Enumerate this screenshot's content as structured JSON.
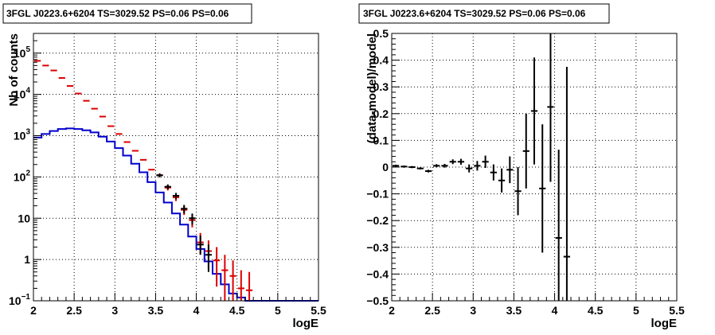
{
  "chart_data": [
    {
      "type": "line",
      "title": "3FGL J0223.6+6204 TS=3029.52 PS=0.06 PS=0.06",
      "xlabel": "logE",
      "ylabel": "Nb of counts",
      "xlim": [
        2,
        5.5
      ],
      "ylim": [
        0.1,
        300000
      ],
      "yscale": "log",
      "grid": true,
      "xticks": [
        "2",
        "2.5",
        "3",
        "3.5",
        "4",
        "4.5",
        "5",
        "5.5"
      ],
      "yticks": [
        {
          "v": 0.1,
          "m": "10",
          "e": "−1"
        },
        {
          "v": 1,
          "m": "1",
          "e": ""
        },
        {
          "v": 10,
          "m": "10",
          "e": ""
        },
        {
          "v": 100,
          "m": "10",
          "e": "2"
        },
        {
          "v": 1000,
          "m": "10",
          "e": "3"
        },
        {
          "v": 10000,
          "m": "10",
          "e": "4"
        },
        {
          "v": 100000,
          "m": "10",
          "e": "5"
        }
      ],
      "bin_edges": [
        2.0,
        2.1,
        2.2,
        2.3,
        2.4,
        2.5,
        2.6,
        2.7,
        2.8,
        2.9,
        3.0,
        3.1,
        3.2,
        3.3,
        3.4,
        3.5,
        3.6,
        3.7,
        3.8,
        3.9,
        4.0,
        4.1,
        4.2,
        4.3,
        4.4,
        4.5,
        4.6,
        4.7,
        4.8,
        4.9,
        5.0,
        5.1,
        5.2,
        5.3,
        5.4,
        5.5
      ],
      "series": [
        {
          "kind": "histogram",
          "color": "#0000cc",
          "values": [
            900,
            1100,
            1300,
            1450,
            1500,
            1450,
            1350,
            1200,
            950,
            720,
            500,
            330,
            210,
            130,
            75,
            42,
            24,
            13,
            7,
            3.6,
            1.8,
            0.9,
            0.45,
            0.25,
            0.15,
            0.12,
            0.1,
            0.1,
            0.1,
            0.1,
            0.1,
            0.1,
            0.1,
            0.1,
            0.1
          ]
        },
        {
          "kind": "points",
          "color": "#dd0000",
          "x": [
            2.05,
            2.15,
            2.25,
            2.35,
            2.45,
            2.55,
            2.65,
            2.75,
            2.85,
            2.95,
            3.05,
            3.15,
            3.25,
            3.35,
            3.45,
            3.55,
            3.65,
            3.75,
            3.85,
            3.95,
            4.05,
            4.15,
            4.25,
            4.35,
            4.45,
            4.55,
            4.65
          ],
          "y": [
            65000,
            50000,
            38000,
            25000,
            16000,
            10500,
            7000,
            4500,
            2900,
            1700,
            1100,
            700,
            430,
            260,
            150,
            110,
            55,
            32,
            16,
            9,
            2.6,
            1.6,
            0.95,
            0.55,
            0.4,
            0.2,
            0.18
          ],
          "err_low": [
            0,
            0,
            0,
            0,
            0,
            0,
            0,
            0,
            0,
            0,
            0,
            0,
            0,
            0,
            0,
            12,
            8,
            6,
            4,
            3,
            1.2,
            1.0,
            0.73,
            0.45,
            0.3,
            0.1,
            0.08
          ],
          "err_high": [
            0,
            0,
            0,
            0,
            0,
            0,
            0,
            0,
            0,
            0,
            0,
            0,
            0,
            0,
            0,
            12,
            8,
            6,
            4,
            3,
            1.8,
            1.3,
            1.05,
            0.75,
            0.55,
            0.35,
            0.32
          ]
        },
        {
          "kind": "points",
          "color": "#000000",
          "x": [
            3.55,
            3.65,
            3.75,
            3.85,
            3.95,
            4.05,
            4.15
          ],
          "y": [
            110,
            58,
            35,
            17,
            10,
            2.3,
            1.3
          ],
          "err_low": [
            12,
            8,
            6,
            4,
            3,
            1.0,
            0.8
          ],
          "err_high": [
            12,
            8,
            6,
            4,
            3,
            1.5,
            1.0
          ]
        }
      ]
    },
    {
      "type": "scatter",
      "title": "3FGL J0223.6+6204 TS=3029.52 PS=0.06 PS=0.06",
      "xlabel": "logE",
      "ylabel": "(data-model)/model",
      "xlim": [
        2,
        5.5
      ],
      "ylim": [
        -0.5,
        0.5
      ],
      "grid": true,
      "xticks": [
        "2",
        "2.5",
        "3",
        "3.5",
        "4",
        "4.5",
        "5",
        "5.5"
      ],
      "yticks": [
        "−0.5",
        "−0.4",
        "−0.3",
        "−0.2",
        "−0.1",
        "0",
        "0.1",
        "0.2",
        "0.3",
        "0.4",
        "0.5"
      ],
      "series": [
        {
          "color": "#000000",
          "x": [
            2.05,
            2.15,
            2.25,
            2.35,
            2.45,
            2.55,
            2.65,
            2.75,
            2.85,
            2.95,
            3.05,
            3.15,
            3.25,
            3.35,
            3.45,
            3.55,
            3.65,
            3.75,
            3.85,
            3.95,
            4.05,
            4.15
          ],
          "y": [
            0.005,
            0.002,
            0.0,
            -0.005,
            -0.015,
            0.005,
            0.005,
            0.02,
            0.02,
            -0.005,
            0.005,
            0.02,
            -0.02,
            -0.05,
            -0.01,
            -0.09,
            0.06,
            0.21,
            -0.08,
            0.225,
            -0.265,
            -0.335
          ],
          "err": [
            0.004,
            0.004,
            0.004,
            0.004,
            0.005,
            0.006,
            0.007,
            0.009,
            0.011,
            0.015,
            0.018,
            0.023,
            0.03,
            0.045,
            0.05,
            0.09,
            0.14,
            0.2,
            0.24,
            0.28,
            0.33,
            0.71
          ]
        }
      ]
    }
  ]
}
